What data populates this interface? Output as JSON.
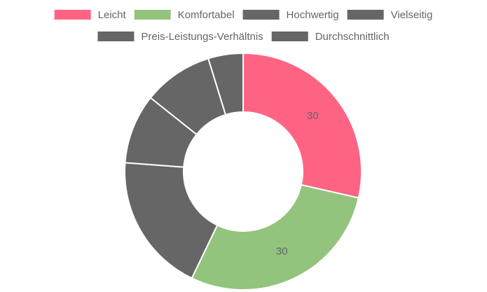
{
  "chart_data": {
    "type": "doughnut",
    "categories": [
      "Leicht",
      "Komfortabel",
      "Hochwertig",
      "Vielseitig",
      "Preis-Leistungs-Verhältnis",
      "Durchschnittlich"
    ],
    "values": [
      30,
      30,
      20,
      10,
      10,
      5
    ],
    "value_labels": [
      "30",
      "30",
      null,
      null,
      null,
      null
    ],
    "colors": [
      "#ff6384",
      "#93c47d",
      "#666666",
      "#666666",
      "#666666",
      "#666666"
    ],
    "legend": "top"
  }
}
